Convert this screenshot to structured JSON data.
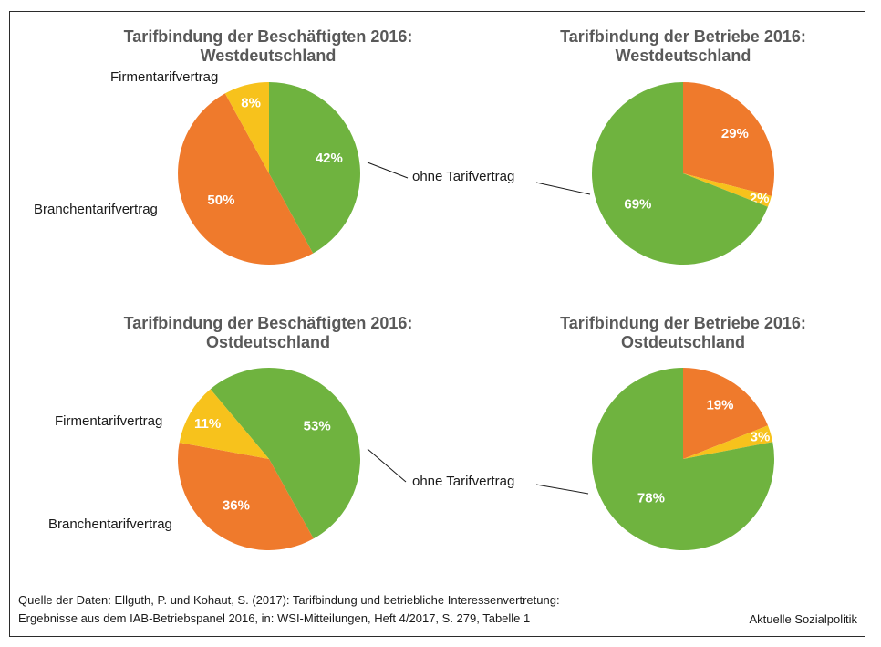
{
  "colors": {
    "green": "#6fb33f",
    "orange": "#ef7a2c",
    "yellow": "#f7c21c",
    "leader": "#1a1a1a"
  },
  "chart_data": [
    {
      "type": "pie",
      "title": "Tarifbindung der Beschäftigten 2016:",
      "subtitle": "Westdeutschland",
      "slices": [
        {
          "label": "ohne Tarifvertrag",
          "value": 42,
          "display": "42%",
          "color": "green"
        },
        {
          "label": "Branchentarifvertrag",
          "value": 50,
          "display": "50%",
          "color": "orange"
        },
        {
          "label": "Firmentarifvertrag",
          "value": 8,
          "display": "8%",
          "color": "yellow"
        }
      ]
    },
    {
      "type": "pie",
      "title": "Tarifbindung der Betriebe 2016:",
      "subtitle": "Westdeutschland",
      "slices": [
        {
          "label": "Branchentarifvertrag",
          "value": 29,
          "display": "29%",
          "color": "orange"
        },
        {
          "label": "Firmentarifvertrag",
          "value": 2,
          "display": "2%",
          "color": "yellow"
        },
        {
          "label": "ohne Tarifvertrag",
          "value": 69,
          "display": "69%",
          "color": "green"
        }
      ]
    },
    {
      "type": "pie",
      "title": "Tarifbindung der Beschäftigten 2016:",
      "subtitle": "Ostdeutschland",
      "slices": [
        {
          "label": "ohne Tarifvertrag",
          "value": 53,
          "display": "53%",
          "color": "green"
        },
        {
          "label": "Branchentarifvertrag",
          "value": 36,
          "display": "36%",
          "color": "orange"
        },
        {
          "label": "Firmentarifvertrag",
          "value": 11,
          "display": "11%",
          "color": "yellow"
        }
      ]
    },
    {
      "type": "pie",
      "title": "Tarifbindung der Betriebe 2016:",
      "subtitle": "Ostdeutschland",
      "slices": [
        {
          "label": "Branchentarifvertrag",
          "value": 19,
          "display": "19%",
          "color": "orange"
        },
        {
          "label": "Firmentarifvertrag",
          "value": 3,
          "display": "3%",
          "color": "yellow"
        },
        {
          "label": "ohne Tarifvertrag",
          "value": 78,
          "display": "78%",
          "color": "green"
        }
      ]
    }
  ],
  "labels": {
    "firmen": "Firmentarifvertrag",
    "branchen": "Branchentarifvertrag",
    "ohne": "ohne Tarifvertrag"
  },
  "footer": {
    "source_line1": "Quelle der Daten: Ellguth, P. und Kohaut, S. (2017): Tarifbindung und betriebliche Interessenvertretung:",
    "source_line2": "Ergebnisse aus dem IAB-Betriebspanel 2016, in: WSI-Mitteilungen, Heft 4/2017, S. 279, Tabelle 1",
    "credit": "Aktuelle Sozialpolitik"
  }
}
